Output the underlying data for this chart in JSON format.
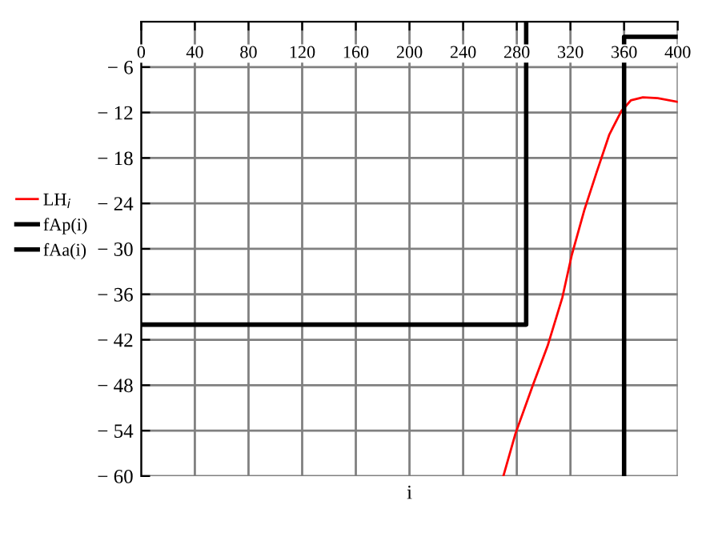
{
  "chart_data": {
    "type": "line",
    "xlabel": "i",
    "series": [
      {
        "name": "LH$_{i}$",
        "color": "#ff0000",
        "x": [
          270,
          279,
          292,
          303,
          314,
          321,
          330.5,
          339.5,
          349,
          358,
          365,
          374,
          385,
          400
        ],
        "values": [
          -60,
          -54.4,
          -48,
          -42.8,
          -36.4,
          -30.8,
          -24.8,
          -19.9,
          -14.9,
          -11.8,
          -10.4,
          -10,
          -10.1,
          -10.6
        ]
      },
      {
        "name": "fAp(i)",
        "color": "#000000",
        "x": [
          0,
          287,
          287
        ],
        "values": [
          -40,
          -40,
          0
        ]
      },
      {
        "name": "fAa(i)",
        "color": "#000000",
        "x": [
          360,
          360,
          400
        ],
        "values": [
          -60,
          -2,
          -2
        ]
      }
    ],
    "xlim": [
      0,
      400
    ],
    "xticks": [
      0,
      40,
      80,
      120,
      160,
      200,
      240,
      280,
      320,
      360,
      400
    ],
    "ylim": [
      -60,
      0
    ],
    "yticks": [
      {
        "value": -6,
        "label": "− 6"
      },
      {
        "value": -12,
        "label": "− 12"
      },
      {
        "value": -18,
        "label": "− 18"
      },
      {
        "value": -24,
        "label": "− 24"
      },
      {
        "value": -30,
        "label": "− 30"
      },
      {
        "value": -36,
        "label": "− 36"
      },
      {
        "value": -42,
        "label": "− 42"
      },
      {
        "value": -48,
        "label": "− 48"
      },
      {
        "value": -54,
        "label": "− 54"
      },
      {
        "value": -60,
        "label": "− 60"
      }
    ],
    "grid": true,
    "legend": "left"
  }
}
